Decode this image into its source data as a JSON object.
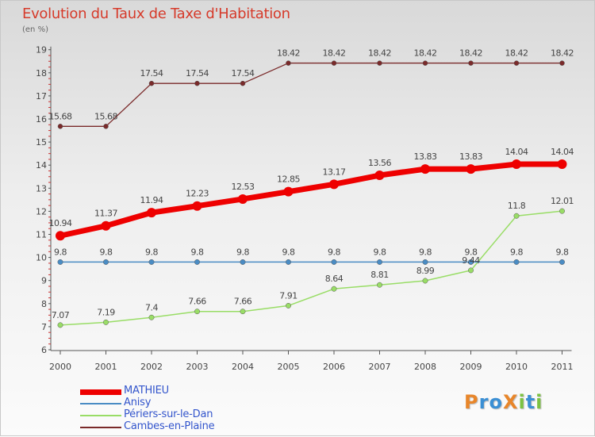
{
  "title": "Evolution du Taux de Taxe d'Habitation",
  "unit_label": "(en %)",
  "logo": {
    "text": "ProXiti",
    "letters": [
      "P",
      "r",
      "o",
      "X",
      "i",
      "t",
      "i"
    ],
    "colors": [
      "#e8862a",
      "#3b8fd4",
      "#3b8fd4",
      "#e8862a",
      "#7cc242",
      "#3b8fd4",
      "#7cc242"
    ]
  },
  "chart_data": {
    "type": "line",
    "title": "Evolution du Taux de Taxe d'Habitation",
    "ylabel": "(en %)",
    "x": [
      "2000",
      "2001",
      "2002",
      "2003",
      "2004",
      "2005",
      "2006",
      "2007",
      "2008",
      "2009",
      "2010",
      "2011"
    ],
    "ylim": [
      6,
      19
    ],
    "yticks": [
      "6",
      "7",
      "8",
      "9",
      "10",
      "11",
      "12",
      "13",
      "14",
      "15",
      "16",
      "17",
      "18",
      "19"
    ],
    "grid": false,
    "legend_position": "bottom-left",
    "series": [
      {
        "name": "MATHIEU",
        "color": "#ee0000",
        "values": [
          10.94,
          11.37,
          11.94,
          12.23,
          12.53,
          12.85,
          13.17,
          13.56,
          13.83,
          13.83,
          14.04,
          14.04
        ],
        "labels": [
          "10.94",
          "11.37",
          "11.94",
          "12.23",
          "12.53",
          "12.85",
          "13.17",
          "13.56",
          "13.83",
          "13.83",
          "14.04",
          "14.04"
        ]
      },
      {
        "name": "Anisy",
        "color": "#4a8cc4",
        "values": [
          9.8,
          9.8,
          9.8,
          9.8,
          9.8,
          9.8,
          9.8,
          9.8,
          9.8,
          9.8,
          9.8,
          9.8
        ],
        "labels": [
          "9.8",
          "9.8",
          "9.8",
          "9.8",
          "9.8",
          "9.8",
          "9.8",
          "9.8",
          "9.8",
          "9.8",
          "9.8",
          "9.8"
        ]
      },
      {
        "name": "Périers-sur-le-Dan",
        "color": "#99dd66",
        "values": [
          7.07,
          7.19,
          7.4,
          7.66,
          7.66,
          7.91,
          8.64,
          8.81,
          8.99,
          9.44,
          11.8,
          12.01
        ],
        "labels": [
          "7.07",
          "7.19",
          "7.4",
          "7.66",
          "7.66",
          "7.91",
          "8.64",
          "8.81",
          "8.99",
          "9.44",
          "11.8",
          "12.01"
        ]
      },
      {
        "name": "Cambes-en-Plaine",
        "color": "#7a2a2a",
        "values": [
          15.68,
          15.68,
          17.54,
          17.54,
          17.54,
          18.42,
          18.42,
          18.42,
          18.42,
          18.42,
          18.42,
          18.42
        ],
        "labels": [
          "15.68",
          "15.68",
          "17.54",
          "17.54",
          "17.54",
          "18.42",
          "18.42",
          "18.42",
          "18.42",
          "18.42",
          "18.42",
          "18.42"
        ]
      }
    ]
  }
}
